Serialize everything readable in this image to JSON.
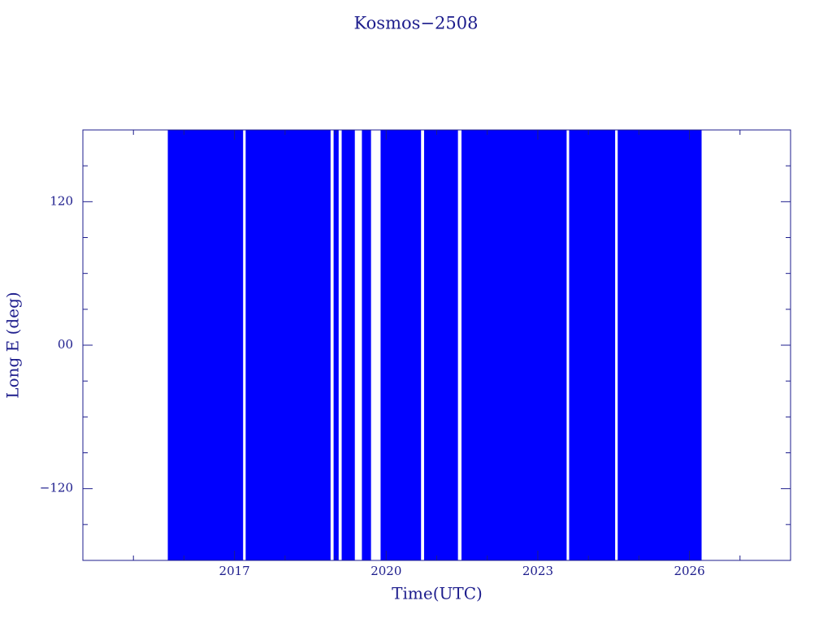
{
  "chart_data": {
    "type": "band",
    "title": "Kosmos−2508",
    "xlabel": "Time(UTC)",
    "ylabel": "Long E (deg)",
    "color": "#0000ff",
    "axis_color": "#1c1c8c",
    "x_start": [
      2015.68,
      2017.22,
      2018.96,
      2019.12,
      2019.52,
      2019.89,
      2020.75,
      2021.49,
      2023.62,
      2024.58
    ],
    "x_end": [
      2017.17,
      2018.9,
      2019.06,
      2019.38,
      2019.7,
      2020.69,
      2021.42,
      2023.57,
      2024.53,
      2026.24
    ],
    "xlim": [
      2014,
      2028
    ],
    "xticks": [
      2017,
      2020,
      2023,
      2026
    ],
    "xminorticks": [
      2015,
      2016,
      2018,
      2019,
      2021,
      2022,
      2024,
      2025,
      2027
    ],
    "ylim": [
      -180,
      180
    ],
    "yticks": [
      {
        "value": -120,
        "label": "−120"
      },
      {
        "value": 0,
        "label": "00"
      },
      120
    ],
    "yminorticks": [
      -150,
      -90,
      -60,
      -30,
      30,
      60,
      90,
      150
    ]
  }
}
